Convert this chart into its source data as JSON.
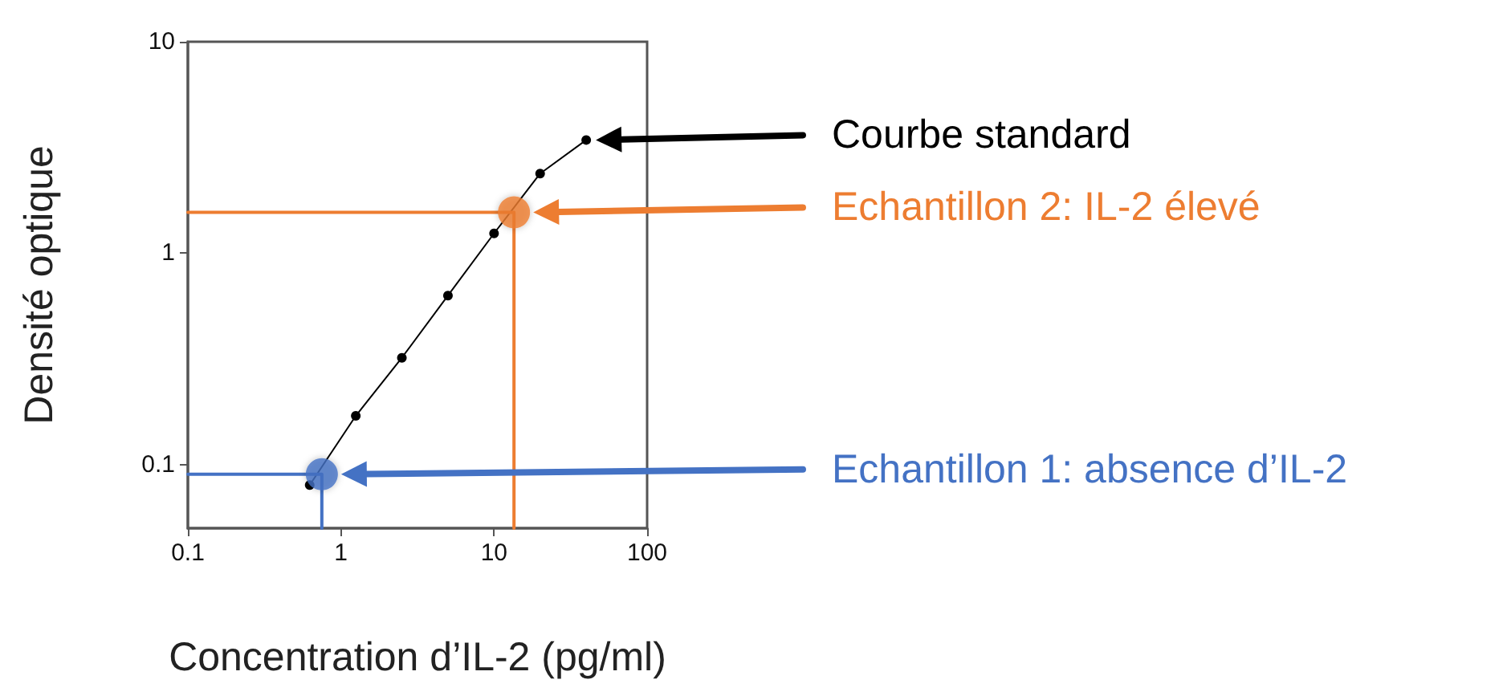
{
  "chart_data": {
    "type": "line",
    "xlabel": "Concentration d’IL-2 (pg/ml)",
    "ylabel": "Densité optique",
    "log": "xy",
    "xlim": [
      0.1,
      100
    ],
    "ylim": [
      0.05,
      10
    ],
    "xticks": [
      0.1,
      1,
      10,
      100
    ],
    "yticks": [
      0.1,
      1,
      10
    ],
    "grid": false,
    "series": [
      {
        "color": "#000000",
        "marker": "circle",
        "x": [
          0.625,
          1.25,
          2.5,
          5,
          10,
          20,
          40
        ],
        "values": [
          0.08,
          0.17,
          0.32,
          0.63,
          1.24,
          2.38,
          3.43
        ]
      },
      {
        "type": "scatter",
        "color": "#ed7d31",
        "marker": "circle",
        "x": [
          13.5
        ],
        "values": [
          1.56
        ]
      },
      {
        "type": "scatter",
        "color": "#4472c4",
        "marker": "circle",
        "x": [
          0.75
        ],
        "values": [
          0.09
        ]
      },
      {
        "color": "#ed7d31",
        "marker": "none",
        "x": [
          0.1,
          13.5,
          13.5
        ],
        "values": [
          1.56,
          1.56,
          0.05
        ]
      },
      {
        "color": "#4472c4",
        "marker": "none",
        "x": [
          0.1,
          0.75,
          0.75
        ],
        "values": [
          0.09,
          0.09,
          0.05
        ]
      }
    ],
    "annotations": [
      "Courbe standard",
      "Echantillon 2: IL-2 élevé",
      "Echantillon 1: absence d’IL-2"
    ]
  }
}
